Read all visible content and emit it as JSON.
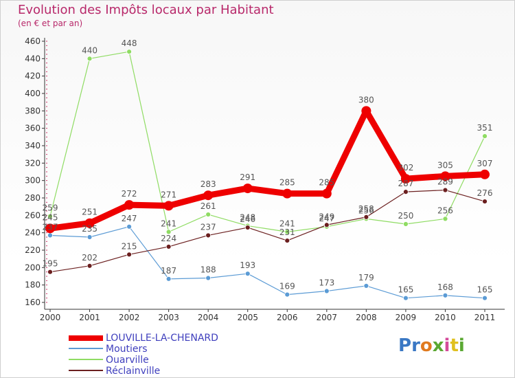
{
  "title": "Evolution des Impôts locaux par Habitant",
  "subtitle": "(en € et par an)",
  "logo_text": "Proxiti",
  "chart_data": {
    "type": "line",
    "categories": [
      "2000",
      "2001",
      "2002",
      "2003",
      "2004",
      "2005",
      "2006",
      "2007",
      "2008",
      "2009",
      "2010",
      "2011"
    ],
    "ylim": [
      160,
      460
    ],
    "yticks": [
      160,
      180,
      200,
      220,
      240,
      260,
      280,
      300,
      320,
      340,
      360,
      380,
      400,
      420,
      440,
      460
    ],
    "series": [
      {
        "name": "LOUVILLE-LA-CHENARD",
        "color": "#ee0000",
        "values": [
          245,
          251,
          272,
          271,
          283,
          291,
          285,
          285,
          380,
          302,
          305,
          307
        ]
      },
      {
        "name": "Moutiers",
        "color": "#5b9bd5",
        "values": [
          237,
          235,
          247,
          187,
          188,
          193,
          169,
          173,
          179,
          165,
          168,
          165
        ]
      },
      {
        "name": "Ouarville",
        "color": "#8fdc63",
        "values": [
          259,
          440,
          448,
          241,
          261,
          248,
          241,
          247,
          256,
          250,
          256,
          351
        ]
      },
      {
        "name": "Réclainville",
        "color": "#6b1f1f",
        "values": [
          195,
          202,
          215,
          224,
          237,
          246,
          231,
          249,
          258,
          287,
          289,
          276
        ]
      }
    ],
    "grid": false,
    "legend_position": "bottom-left"
  }
}
